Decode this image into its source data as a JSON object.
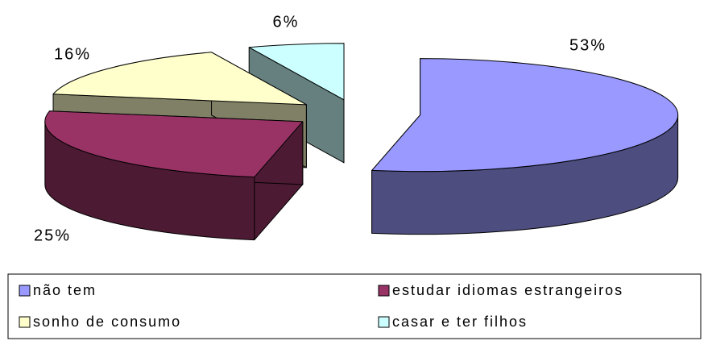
{
  "chart_data": {
    "type": "pie3d",
    "categories": [
      "não tem",
      "estudar idiomas estrangeiros",
      "sonho de consumo",
      "casar e ter filhos"
    ],
    "values": [
      53,
      25,
      16,
      6
    ],
    "value_labels": [
      "53%",
      "25%",
      "16%",
      "6%"
    ],
    "colors": [
      "#9999ff",
      "#993366",
      "#ffffcc",
      "#ccffff"
    ],
    "legend": "bottom"
  }
}
